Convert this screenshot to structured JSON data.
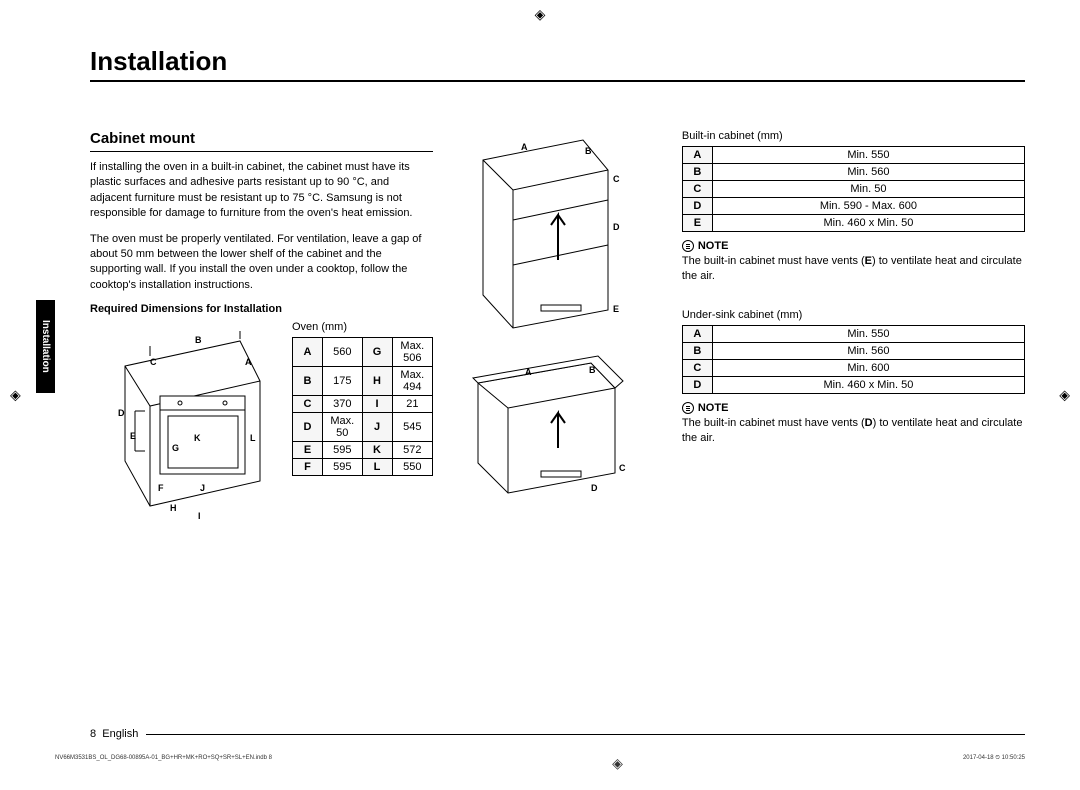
{
  "page": {
    "title": "Installation",
    "side_tab": "Installation",
    "page_num": "8",
    "lang": "English",
    "print_left": "NV66M3531BS_OL_DG68-00895A-01_BG+HR+MK+RO+SQ+SR+SL+EN.indb   8",
    "print_right": "2017-04-18   ⏲ 10:50:25"
  },
  "cabinet": {
    "heading": "Cabinet mount",
    "p1": "If installing the oven in a built-in cabinet, the cabinet must have its plastic surfaces and adhesive parts resistant up to 90 °C, and adjacent furniture must be resistant up to 75 °C. Samsung is not responsible for damage to furniture from the oven's heat emission.",
    "p2": "The oven must be properly ventilated. For ventilation, leave a gap of about 50 mm between the lower shelf of the cabinet and the supporting wall. If you install the oven under a cooktop, follow the cooktop's installation instructions.",
    "req_dim": "Required Dimensions for Installation"
  },
  "oven_table": {
    "caption": "Oven (mm)",
    "rows": [
      {
        "k1": "A",
        "v1": "560",
        "k2": "G",
        "v2": "Max. 506"
      },
      {
        "k1": "B",
        "v1": "175",
        "k2": "H",
        "v2": "Max. 494"
      },
      {
        "k1": "C",
        "v1": "370",
        "k2": "I",
        "v2": "21"
      },
      {
        "k1": "D",
        "v1": "Max. 50",
        "k2": "J",
        "v2": "545"
      },
      {
        "k1": "E",
        "v1": "595",
        "k2": "K",
        "v2": "572"
      },
      {
        "k1": "F",
        "v1": "595",
        "k2": "L",
        "v2": "550"
      }
    ]
  },
  "builtin_table": {
    "caption": "Built-in cabinet (mm)",
    "rows": [
      {
        "k": "A",
        "v": "Min. 550"
      },
      {
        "k": "B",
        "v": "Min. 560"
      },
      {
        "k": "C",
        "v": "Min. 50"
      },
      {
        "k": "D",
        "v": "Min. 590 - Max. 600"
      },
      {
        "k": "E",
        "v": "Min. 460 x Min. 50"
      }
    ],
    "note_head": "NOTE",
    "note_body_a": "The built-in cabinet must have vents (",
    "note_bold": "E",
    "note_body_b": ") to ventilate heat and circulate the air."
  },
  "undersink_table": {
    "caption": "Under-sink cabinet (mm)",
    "rows": [
      {
        "k": "A",
        "v": "Min. 550"
      },
      {
        "k": "B",
        "v": "Min. 560"
      },
      {
        "k": "C",
        "v": "Min. 600"
      },
      {
        "k": "D",
        "v": "Min. 460 x Min. 50"
      }
    ],
    "note_head": "NOTE",
    "note_body_a": "The built-in cabinet must have vents (",
    "note_bold": "D",
    "note_body_b": ") to ventilate heat and circulate the air."
  },
  "diagram_style": {
    "stroke": "#000",
    "stroke_width": 1,
    "fill": "none",
    "label_fontsize": 9
  }
}
